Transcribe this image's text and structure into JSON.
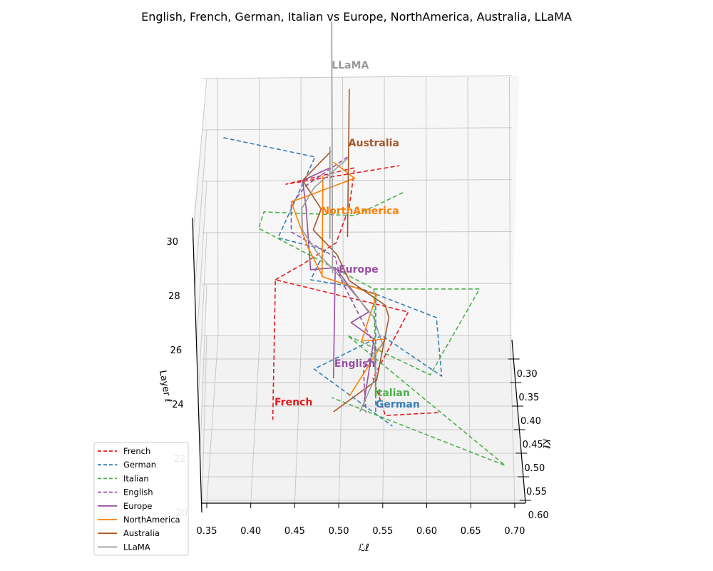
{
  "chart_data": {
    "type": "line",
    "title": "English, French, German, Italian vs Europe, NorthAmerica, Australia, LLaMA",
    "xlabel": "ℒℓ",
    "ylabel": "Kℓ",
    "zlabel": "Layer ℓ",
    "x_ticks": [
      "0.35",
      "0.40",
      "0.45",
      "0.50",
      "0.55",
      "0.60",
      "0.65",
      "0.70"
    ],
    "y_ticks": [
      "0.30",
      "0.35",
      "0.40",
      "0.45",
      "0.50",
      "0.55",
      "0.60"
    ],
    "z_ticks": [
      "20",
      "22",
      "24",
      "26",
      "28",
      "30"
    ],
    "xlim": [
      0.35,
      0.7
    ],
    "ylim": [
      0.3,
      0.6
    ],
    "zlim": [
      20,
      30
    ],
    "legend_position": "lower-left",
    "note": "points given as [L, layer]",
    "series": [
      {
        "name": "French",
        "color": "#e41a1c",
        "dashed": true,
        "label": "French",
        "label_at": [
          0.427,
          20.84
        ],
        "segments": [
          [
            [
              0.613,
              20.43
            ],
            [
              0.553,
              20.32
            ],
            [
              0.539,
              21.73
            ],
            [
              0.579,
              24.24
            ],
            [
              0.428,
              25.46
            ],
            [
              0.425,
              20.16
            ]
          ],
          [
            [
              0.428,
              25.46
            ],
            [
              0.459,
              26.05
            ],
            [
              0.497,
              26.86
            ],
            [
              0.512,
              28.22
            ],
            [
              0.518,
              29.7
            ],
            [
              0.44,
              29.08
            ],
            [
              0.569,
              29.78
            ]
          ]
        ]
      },
      {
        "name": "German",
        "color": "#377eb8",
        "dashed": true,
        "label": "German",
        "label_at": [
          0.542,
          20.76
        ],
        "segments": [
          [
            [
              0.369,
              30.84
            ],
            [
              0.473,
              30.11
            ],
            [
              0.431,
              27.05
            ],
            [
              0.485,
              26.59
            ],
            [
              0.468,
              25.46
            ],
            [
              0.523,
              25.16
            ],
            [
              0.611,
              24.03
            ],
            [
              0.617,
              21.81
            ],
            [
              0.549,
              23.35
            ],
            [
              0.472,
              22.08
            ],
            [
              0.561,
              19.92
            ]
          ],
          [
            [
              0.542,
              20.46
            ],
            [
              0.542,
              24.97
            ]
          ]
        ]
      },
      {
        "name": "Italian",
        "color": "#4daf4a",
        "dashed": true,
        "label": "Italian",
        "label_at": [
          0.54,
          21.19
        ],
        "segments": [
          [
            [
              0.573,
              28.76
            ],
            [
              0.518,
              27.89
            ],
            [
              0.415,
              28.03
            ],
            [
              0.409,
              27.41
            ],
            [
              0.54,
              25.11
            ],
            [
              0.66,
              25.11
            ],
            [
              0.604,
              21.86
            ],
            [
              0.51,
              23.35
            ],
            [
              0.689,
              18.43
            ],
            [
              0.492,
              21.0
            ]
          ],
          [
            [
              0.54,
              25.11
            ],
            [
              0.542,
              21.32
            ]
          ]
        ]
      },
      {
        "name": "English",
        "color": "#984ea3",
        "dashed": true,
        "label": "English",
        "label_at": [
          0.495,
          22.3
        ],
        "segments": [
          [
            [
              0.51,
              30.11
            ],
            [
              0.463,
              29.03
            ],
            [
              0.446,
              28.3
            ],
            [
              0.446,
              27.27
            ],
            [
              0.496,
              26.32
            ],
            [
              0.502,
              25.51
            ],
            [
              0.542,
              22.89
            ],
            [
              0.528,
              22.08
            ],
            [
              0.531,
              20.43
            ]
          ]
        ]
      },
      {
        "name": "Europe",
        "color": "#984ea3",
        "dashed": false,
        "label": "Europe",
        "label_at": [
          0.5,
          25.86
        ],
        "segments": [
          [
            [
              0.49,
              29.7
            ],
            [
              0.459,
              29.22
            ],
            [
              0.463,
              28.14
            ],
            [
              0.468,
              25.84
            ],
            [
              0.496,
              25.92
            ],
            [
              0.534,
              24.24
            ],
            [
              0.514,
              23.84
            ],
            [
              0.54,
              23.22
            ],
            [
              0.528,
              20.65
            ]
          ],
          [
            [
              0.494,
              21.73
            ],
            [
              0.496,
              25.92
            ]
          ]
        ]
      },
      {
        "name": "NorthAmerica",
        "color": "#ff7f00",
        "dashed": false,
        "label": "NorthAmerica",
        "label_at": [
          0.48,
          28.08
        ],
        "segments": [
          [
            [
              0.494,
              29.92
            ],
            [
              0.518,
              29.3
            ],
            [
              0.446,
              28.41
            ],
            [
              0.465,
              26.68
            ],
            [
              0.482,
              25.57
            ],
            [
              0.543,
              24.89
            ],
            [
              0.526,
              23.14
            ],
            [
              0.553,
              23.22
            ],
            [
              0.512,
              21.05
            ]
          ],
          [
            [
              0.482,
              29.38
            ],
            [
              0.481,
              25.57
            ]
          ]
        ]
      },
      {
        "name": "Australia",
        "color": "#a65628",
        "dashed": false,
        "label": "Australia",
        "label_at": [
          0.511,
          30.65
        ],
        "segments": [
          [
            [
              0.491,
              30.32
            ],
            [
              0.459,
              29.22
            ],
            [
              0.48,
              28.14
            ],
            [
              0.471,
              27.35
            ],
            [
              0.498,
              26.41
            ],
            [
              0.512,
              25.43
            ],
            [
              0.553,
              24.49
            ],
            [
              0.557,
              24.03
            ],
            [
              0.549,
              22.68
            ],
            [
              0.543,
              21.65
            ],
            [
              0.494,
              20.46
            ]
          ],
          [
            [
              0.512,
              32.68
            ],
            [
              0.51,
              27.08
            ]
          ]
        ]
      },
      {
        "name": "LLaMA",
        "color": "#999999",
        "dashed": false,
        "label": "LLaMA",
        "label_at": [
          0.492,
          33.6
        ],
        "segments": [
          [
            [
              0.51,
              30.05
            ],
            [
              0.472,
              28.95
            ],
            [
              0.458,
              28.16
            ],
            [
              0.459,
              27.32
            ],
            [
              0.477,
              26.41
            ],
            [
              0.496,
              25.78
            ],
            [
              0.539,
              24.08
            ],
            [
              0.55,
              23.0
            ],
            [
              0.54,
              22.68
            ],
            [
              0.542,
              21.81
            ],
            [
              0.524,
              20.46
            ]
          ],
          [
            [
              0.492,
              35.24
            ],
            [
              0.493,
              25.7
            ]
          ],
          [
            [
              0.49,
              30.5
            ],
            [
              0.49,
              27.0
            ]
          ]
        ]
      }
    ]
  }
}
